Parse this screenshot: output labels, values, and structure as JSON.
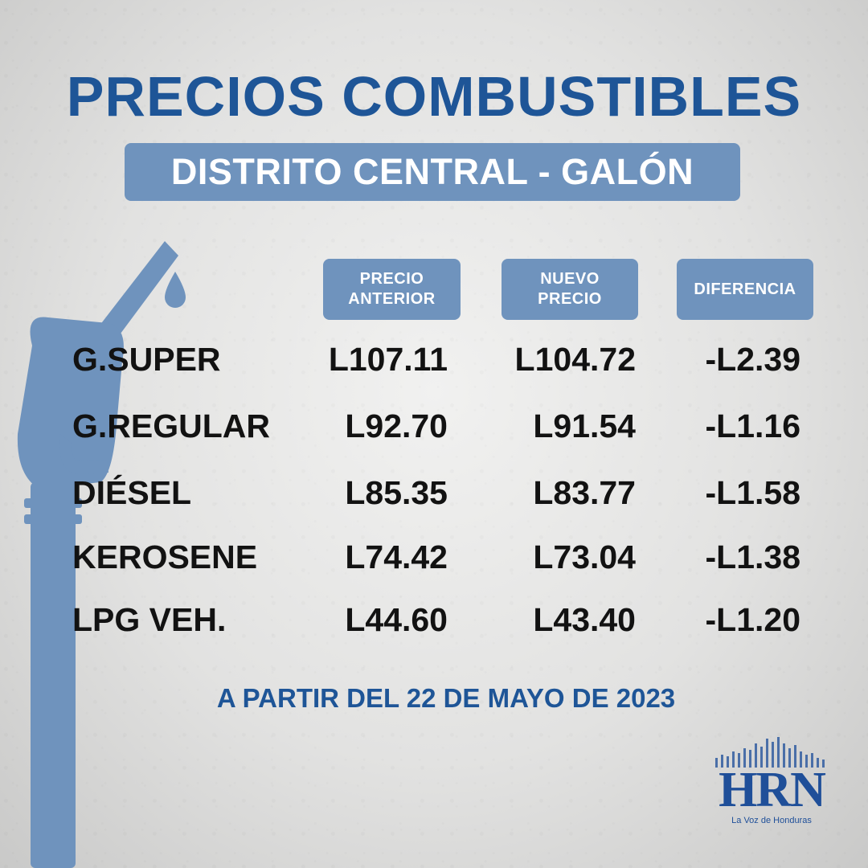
{
  "title": "PRECIOS COMBUSTIBLES",
  "subtitle": "DISTRITO CENTRAL - GALÓN",
  "columns": {
    "previous": "PRECIO\nANTERIOR",
    "new": "NUEVO\nPRECIO",
    "difference": "DIFERENCIA"
  },
  "rows": [
    {
      "name": "G.SUPER",
      "previous": "L107.11",
      "new": "L104.72",
      "difference": "-L2.39"
    },
    {
      "name": "G.REGULAR",
      "previous": "L92.70",
      "new": "L91.54",
      "difference": "-L1.16"
    },
    {
      "name": "DIÉSEL",
      "previous": "L85.35",
      "new": "L83.77",
      "difference": "-L1.58"
    },
    {
      "name": "KEROSENE",
      "previous": "L74.42",
      "new": "L73.04",
      "difference": "-L1.38"
    },
    {
      "name": "LPG VEH.",
      "previous": "L44.60",
      "new": "L43.40",
      "difference": "-L1.20"
    }
  ],
  "footer": "A PARTIR DEL 22 DE MAYO DE 2023",
  "logo": {
    "name": "HRN",
    "tagline": "La Voz de Honduras"
  },
  "colors": {
    "brand_blue": "#1e5597",
    "box_blue": "#6f93bd",
    "pump_blue": "#6f93bd"
  },
  "icons": {
    "pump": "fuel-nozzle-icon",
    "drop": "fuel-drop-icon"
  }
}
